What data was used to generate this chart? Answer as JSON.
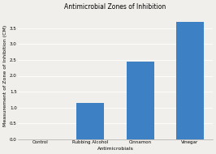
{
  "title": "Antimicrobial Zones of Inhibition",
  "xlabel": "Antimicrobials",
  "ylabel": "Measurement of Zone of Inhibition (CM)",
  "categories": [
    "Control",
    "Rubbing Alcohol",
    "Cinnamon",
    "Vinegar"
  ],
  "values": [
    0,
    1.15,
    2.45,
    3.7
  ],
  "bar_color": "#3d80c3",
  "ylim": [
    0,
    4.0
  ],
  "yticks": [
    0,
    0.5,
    1.0,
    1.5,
    2.0,
    2.5,
    3.0,
    3.5
  ],
  "background_color": "#f0efeb",
  "title_fontsize": 5.5,
  "axis_label_fontsize": 4.5,
  "tick_fontsize": 4.0,
  "bar_width": 0.55
}
